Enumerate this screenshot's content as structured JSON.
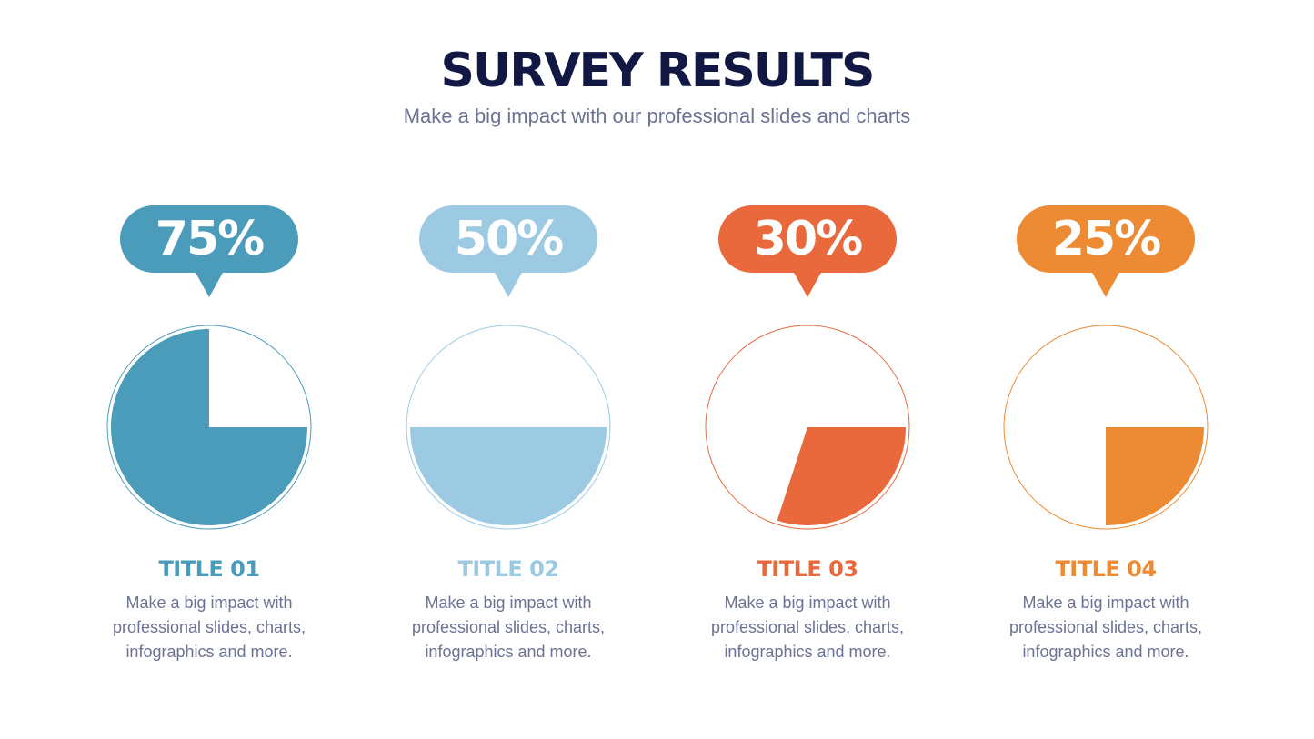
{
  "header": {
    "title": "SURVEY RESULTS",
    "subtitle": "Make a big impact with our professional slides and charts"
  },
  "chart_data": {
    "type": "pie",
    "items": [
      {
        "label": "TITLE 01",
        "value": 75,
        "display": "75%",
        "description": "Make a big impact with professional slides, charts, infographics and more.",
        "color": "#4b9cbb"
      },
      {
        "label": "TITLE 02",
        "value": 50,
        "display": "50%",
        "description": "Make a big impact with professional slides, charts, infographics and more.",
        "color": "#9ccae3"
      },
      {
        "label": "TITLE 03",
        "value": 30,
        "display": "30%",
        "description": "Make a big impact with professional slides, charts, infographics and more.",
        "color": "#e9693c"
      },
      {
        "label": "TITLE 04",
        "value": 25,
        "display": "25%",
        "description": "Make a big impact with professional slides, charts, infographics and more.",
        "color": "#ec8b34"
      }
    ]
  }
}
